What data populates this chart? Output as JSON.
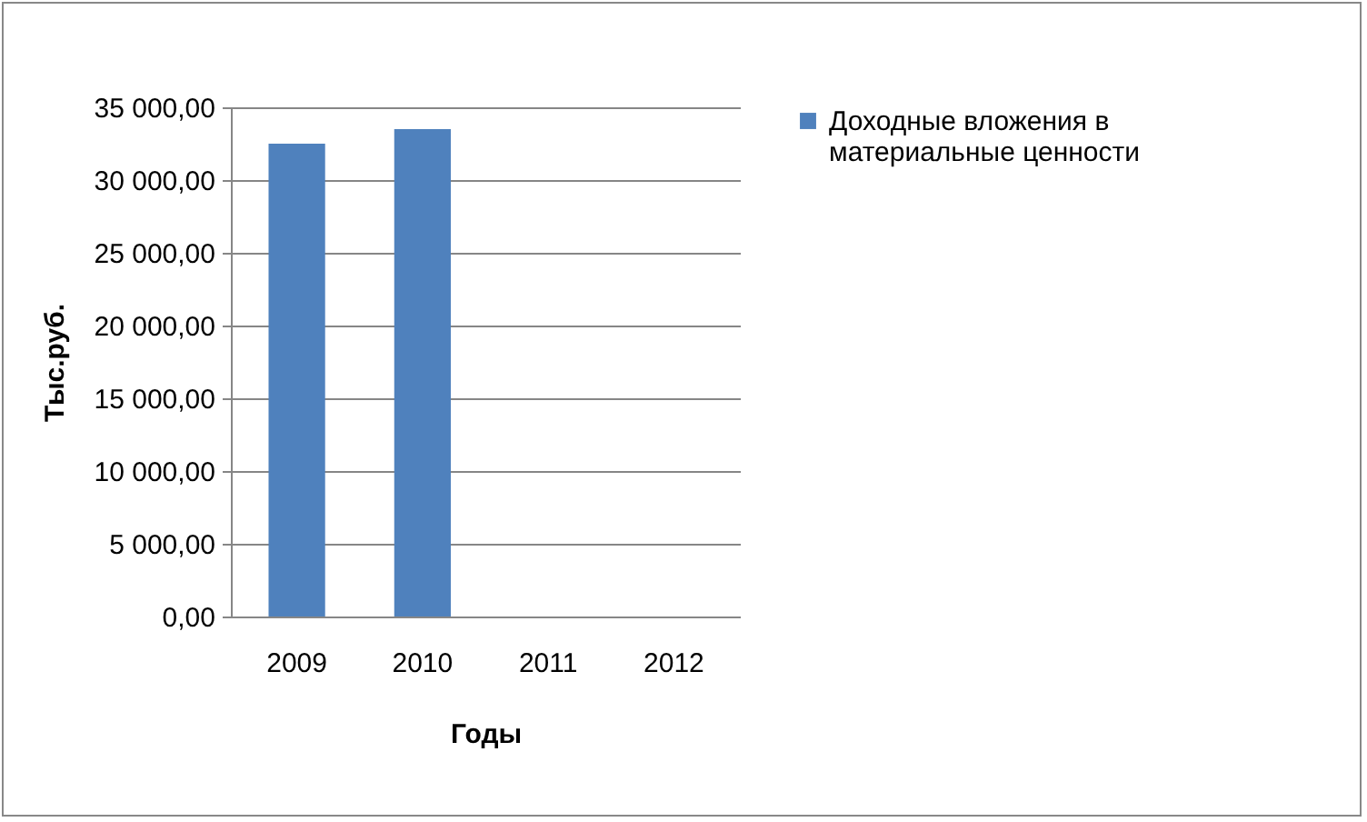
{
  "chart_data": {
    "type": "bar",
    "xlabel": "Годы",
    "ylabel": "Тыс.руб.",
    "categories": [
      "2009",
      "2010",
      "2011",
      "2012"
    ],
    "series": [
      {
        "name": "Доходные вложения в материальные ценности",
        "color": "#4f81bd",
        "values": [
          32500,
          33500,
          0,
          0
        ]
      }
    ],
    "ylim": [
      0,
      35000
    ],
    "yticks": [
      {
        "value": 0,
        "label": "0,00"
      },
      {
        "value": 5000,
        "label": "5 000,00"
      },
      {
        "value": 10000,
        "label": "10 000,00"
      },
      {
        "value": 15000,
        "label": "15 000,00"
      },
      {
        "value": 20000,
        "label": "20 000,00"
      },
      {
        "value": 25000,
        "label": "25 000,00"
      },
      {
        "value": 30000,
        "label": "30 000,00"
      },
      {
        "value": 35000,
        "label": "35 000,00"
      }
    ],
    "grid": "y",
    "legend": "right"
  }
}
